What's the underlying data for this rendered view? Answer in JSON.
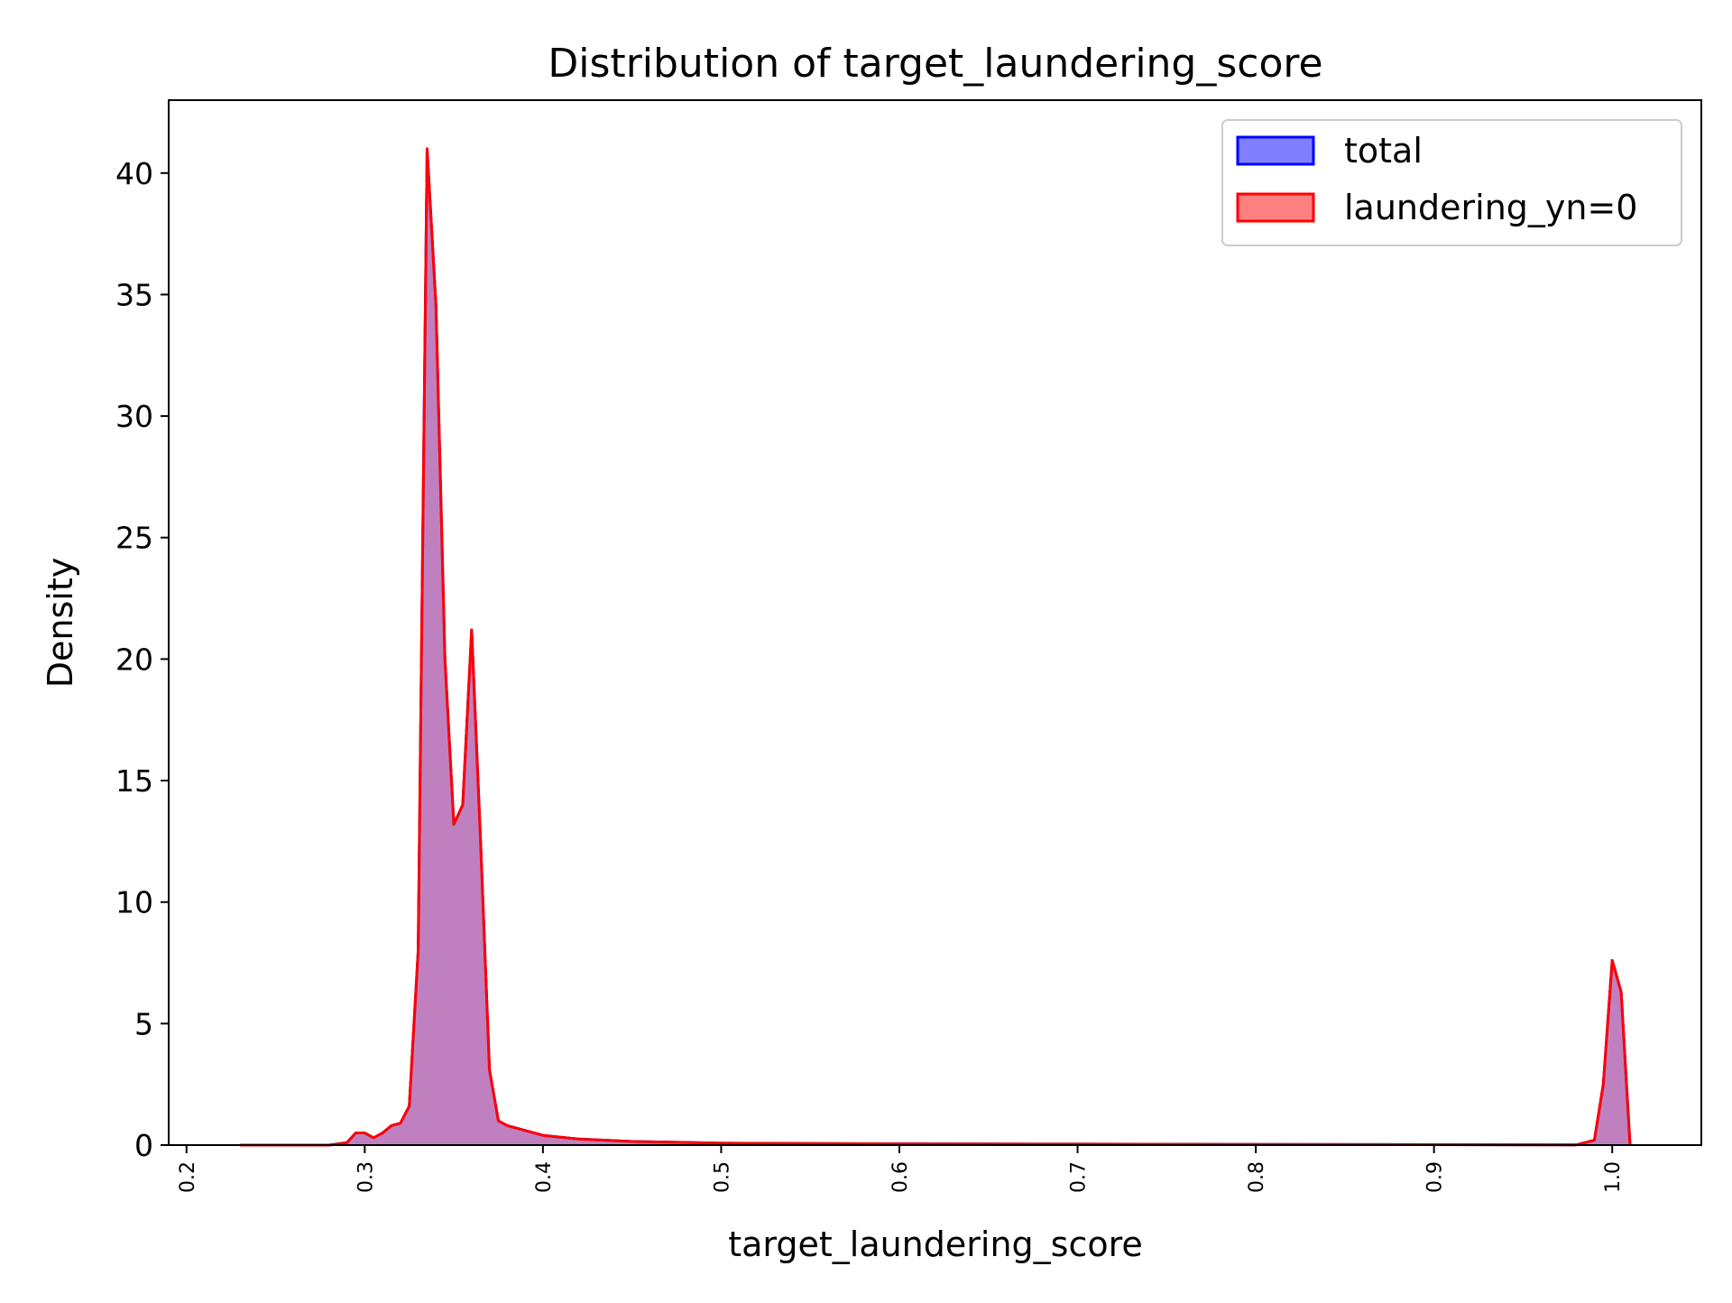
{
  "chart_data": {
    "type": "area",
    "title": "Distribution of target_laundering_score",
    "xlabel": "target_laundering_score",
    "ylabel": "Density",
    "xlim": [
      0.19,
      1.05
    ],
    "ylim": [
      0,
      43
    ],
    "xticks": [
      "0.2",
      "0.3",
      "0.4",
      "0.5",
      "0.6",
      "0.7",
      "0.8",
      "0.9",
      "1.0"
    ],
    "yticks": [
      "0",
      "5",
      "10",
      "15",
      "20",
      "25",
      "30",
      "35",
      "40"
    ],
    "grid": false,
    "legend_position": "top-right",
    "series": [
      {
        "name": "total",
        "line_color": "#0000ff",
        "fill_color": "#8080ff",
        "x": [
          0.23,
          0.28,
          0.29,
          0.295,
          0.3,
          0.305,
          0.31,
          0.315,
          0.32,
          0.325,
          0.33,
          0.335,
          0.34,
          0.345,
          0.35,
          0.355,
          0.36,
          0.365,
          0.37,
          0.375,
          0.38,
          0.4,
          0.42,
          0.45,
          0.5,
          0.6,
          0.7,
          0.8,
          0.9,
          0.98,
          0.99,
          0.995,
          1.0,
          1.005,
          1.01
        ],
        "y": [
          0,
          0,
          0.1,
          0.5,
          0.5,
          0.3,
          0.5,
          0.8,
          0.9,
          1.6,
          8,
          41,
          34.5,
          20,
          13.2,
          14,
          21.2,
          12.5,
          3.1,
          1.0,
          0.8,
          0.4,
          0.25,
          0.15,
          0.08,
          0.05,
          0.04,
          0.03,
          0.02,
          0.01,
          0.2,
          2.5,
          7.6,
          6.3,
          0
        ]
      },
      {
        "name": "laundering_yn=0",
        "line_color": "#ff0000",
        "fill_color": "#ff8080",
        "x": [
          0.23,
          0.28,
          0.29,
          0.295,
          0.3,
          0.305,
          0.31,
          0.315,
          0.32,
          0.325,
          0.33,
          0.335,
          0.34,
          0.345,
          0.35,
          0.355,
          0.36,
          0.365,
          0.37,
          0.375,
          0.38,
          0.4,
          0.42,
          0.45,
          0.5,
          0.6,
          0.7,
          0.8,
          0.9,
          0.98,
          0.99,
          0.995,
          1.0,
          1.005,
          1.01
        ],
        "y": [
          0,
          0,
          0.1,
          0.5,
          0.5,
          0.3,
          0.5,
          0.8,
          0.9,
          1.6,
          8,
          41,
          34.5,
          20,
          13.2,
          14,
          21.2,
          12.5,
          3.1,
          1.0,
          0.8,
          0.4,
          0.25,
          0.15,
          0.08,
          0.05,
          0.04,
          0.03,
          0.02,
          0.01,
          0.2,
          2.5,
          7.6,
          6.3,
          0
        ]
      }
    ]
  }
}
